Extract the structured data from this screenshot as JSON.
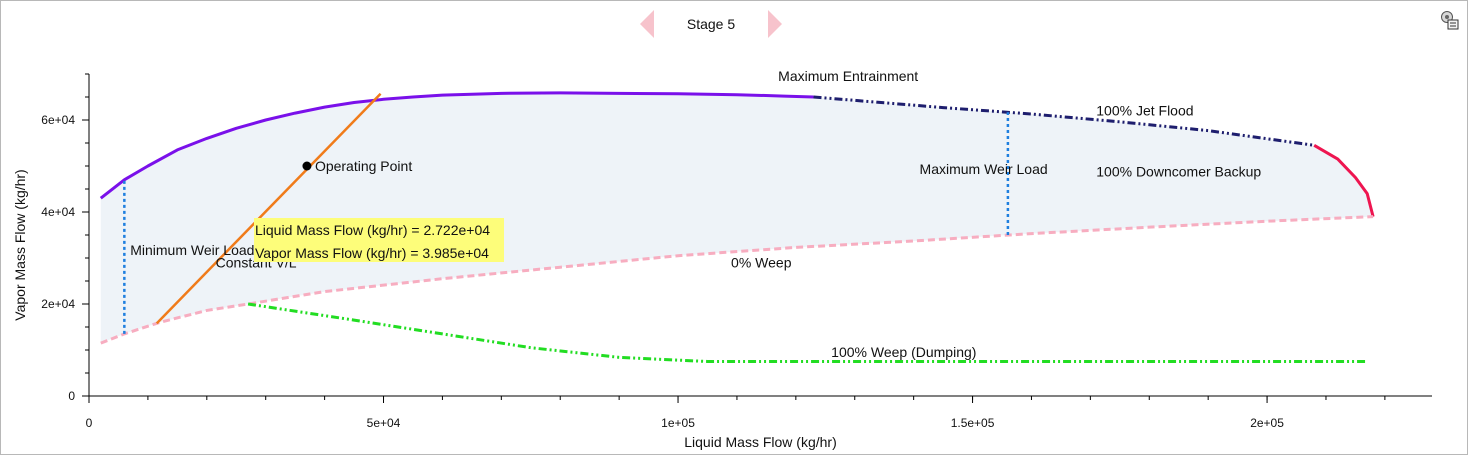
{
  "header": {
    "stage_title": "Stage 5",
    "prev_icon": "chevron-left-icon",
    "next_icon": "chevron-right-icon",
    "settings_icon": "chart-settings-icon"
  },
  "chart_data": {
    "type": "line",
    "title": "Stage 5",
    "xlabel": "Liquid Mass Flow (kg/hr)",
    "ylabel": "Vapor Mass Flow (kg/hr)",
    "xlim": [
      0,
      228000
    ],
    "ylim": [
      0,
      70000
    ],
    "x_ticks": [
      0,
      50000,
      100000,
      150000,
      200000
    ],
    "x_tick_labels": [
      "0",
      "5e+04",
      "1e+05",
      "1.5e+05",
      "2e+05"
    ],
    "y_ticks": [
      0,
      20000,
      40000,
      60000
    ],
    "y_tick_labels": [
      "0",
      "2e+04",
      "4e+04",
      "6e+04"
    ],
    "x_minor_step": 10000,
    "y_minor_step": 5000,
    "colors": {
      "feasible_fill": "#eef3f8",
      "entrainment": "#7a10ea",
      "jet_flood": "#1e1e6e",
      "downcomer": "#ee1550",
      "weep": "#f7adc0",
      "dumping": "#22dd22",
      "weir": "#1f7fdf",
      "constant_vl": "#f07b1a",
      "operating_point": "#000000",
      "tooltip_bg": "#fdfd7a"
    },
    "series": [
      {
        "name": "Maximum Entrainment",
        "style": "solid",
        "points": [
          [
            2000,
            43000
          ],
          [
            3500,
            44500
          ],
          [
            6000,
            47000
          ],
          [
            10000,
            50000
          ],
          [
            15000,
            53500
          ],
          [
            20000,
            56000
          ],
          [
            25000,
            58200
          ],
          [
            30000,
            60000
          ],
          [
            35000,
            61500
          ],
          [
            40000,
            62800
          ],
          [
            45000,
            63800
          ],
          [
            50000,
            64500
          ],
          [
            55000,
            65000
          ],
          [
            60000,
            65400
          ],
          [
            70000,
            65800
          ],
          [
            80000,
            65900
          ],
          [
            90000,
            65800
          ],
          [
            100000,
            65700
          ],
          [
            110000,
            65500
          ],
          [
            118000,
            65200
          ],
          [
            123000,
            65000
          ]
        ]
      },
      {
        "name": "100% Jet Flood",
        "style": "dashdot",
        "points": [
          [
            123000,
            65000
          ],
          [
            145000,
            62700
          ],
          [
            160000,
            61300
          ],
          [
            175000,
            59600
          ],
          [
            190000,
            57700
          ],
          [
            208000,
            54500
          ]
        ]
      },
      {
        "name": "100% Downcomer Backup",
        "style": "solid",
        "points": [
          [
            208000,
            54500
          ],
          [
            212000,
            51500
          ],
          [
            215000,
            47500
          ],
          [
            217000,
            44000
          ],
          [
            218000,
            39000
          ]
        ]
      },
      {
        "name": "0% Weep",
        "style": "dashed",
        "points": [
          [
            2000,
            11500
          ],
          [
            6000,
            13500
          ],
          [
            12000,
            16000
          ],
          [
            20000,
            18600
          ],
          [
            27000,
            20000
          ],
          [
            40000,
            22700
          ],
          [
            60000,
            25500
          ],
          [
            80000,
            28000
          ],
          [
            100000,
            30500
          ],
          [
            120000,
            32300
          ],
          [
            140000,
            33700
          ],
          [
            160000,
            35300
          ],
          [
            180000,
            36700
          ],
          [
            200000,
            38000
          ],
          [
            218000,
            39000
          ]
        ]
      },
      {
        "name": "100% Weep (Dumping)",
        "style": "dashdot",
        "points": [
          [
            27000,
            20000
          ],
          [
            45000,
            16500
          ],
          [
            60000,
            13500
          ],
          [
            75000,
            10500
          ],
          [
            90000,
            8400
          ],
          [
            105000,
            7500
          ],
          [
            130000,
            7500
          ],
          [
            160000,
            7500
          ],
          [
            190000,
            7500
          ],
          [
            217000,
            7500
          ]
        ]
      },
      {
        "name": "Minimum Weir Load",
        "style": "dotted",
        "points": [
          [
            6000,
            13500
          ],
          [
            6000,
            47000
          ]
        ]
      },
      {
        "name": "Maximum Weir Load",
        "style": "dotted",
        "points": [
          [
            156000,
            35000
          ],
          [
            156000,
            61700
          ]
        ]
      },
      {
        "name": "Constant V/L",
        "style": "solid",
        "points": [
          [
            11500,
            15800
          ],
          [
            49500,
            65700
          ]
        ]
      }
    ],
    "operating_point": {
      "label": "Operating Point",
      "x": 37000,
      "y": 50000
    },
    "tooltip": {
      "line1": "Liquid Mass Flow (kg/hr) = 2.722e+04",
      "line2": "Vapor Mass Flow (kg/hr) = 3.985e+04"
    },
    "annotations": [
      {
        "name": "max-entrainment-label",
        "text": "Maximum Entrainment",
        "x": 117000,
        "y": 68500,
        "anchor": "start"
      },
      {
        "name": "jet-flood-label",
        "text": "100% Jet Flood",
        "x": 171000,
        "y": 61000,
        "anchor": "start"
      },
      {
        "name": "max-weir-load-label",
        "text": "Maximum Weir Load",
        "x": 141000,
        "y": 48300,
        "anchor": "start"
      },
      {
        "name": "downcomer-backup-label",
        "text": "100% Downcomer Backup",
        "x": 171000,
        "y": 47700,
        "anchor": "start"
      },
      {
        "name": "min-weir-load-label",
        "text": "Minimum Weir Load",
        "x": 7000,
        "y": 30600,
        "anchor": "start"
      },
      {
        "name": "constant-vl-label",
        "text": "Constant V/L",
        "x": 21500,
        "y": 27900,
        "anchor": "start"
      },
      {
        "name": "zero-weep-label",
        "text": "0% Weep",
        "x": 109000,
        "y": 27900,
        "anchor": "start"
      },
      {
        "name": "dumping-label",
        "text": "100% Weep (Dumping)",
        "x": 126000,
        "y": 8500,
        "anchor": "start"
      }
    ]
  }
}
